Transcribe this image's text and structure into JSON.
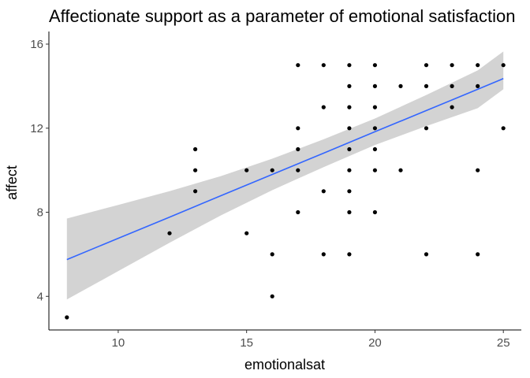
{
  "chart_data": {
    "type": "scatter",
    "title": "Affectionate support as a parameter of emotional satisfaction",
    "xlabel": "emotionalsat",
    "ylabel": "affect",
    "xlim": [
      7.3,
      25.7
    ],
    "ylim": [
      2.4,
      16.6
    ],
    "x_ticks": [
      10,
      15,
      20,
      25
    ],
    "y_ticks": [
      4,
      8,
      12,
      16
    ],
    "grid": false,
    "legend": "none",
    "points": [
      [
        8,
        3
      ],
      [
        12,
        7
      ],
      [
        13,
        9
      ],
      [
        13,
        10
      ],
      [
        13,
        11
      ],
      [
        15,
        7
      ],
      [
        15,
        10
      ],
      [
        16,
        4
      ],
      [
        16,
        6
      ],
      [
        16,
        10
      ],
      [
        17,
        8
      ],
      [
        17,
        10
      ],
      [
        17,
        11
      ],
      [
        17,
        12
      ],
      [
        17,
        15
      ],
      [
        18,
        6
      ],
      [
        18,
        9
      ],
      [
        18,
        13
      ],
      [
        18,
        15
      ],
      [
        19,
        6
      ],
      [
        19,
        8
      ],
      [
        19,
        9
      ],
      [
        19,
        10
      ],
      [
        19,
        11
      ],
      [
        19,
        12
      ],
      [
        19,
        13
      ],
      [
        19,
        14
      ],
      [
        19,
        15
      ],
      [
        20,
        8
      ],
      [
        20,
        10
      ],
      [
        20,
        11
      ],
      [
        20,
        12
      ],
      [
        20,
        13
      ],
      [
        20,
        14
      ],
      [
        20,
        15
      ],
      [
        21,
        10
      ],
      [
        21,
        14
      ],
      [
        22,
        6
      ],
      [
        22,
        12
      ],
      [
        22,
        14
      ],
      [
        22,
        15
      ],
      [
        23,
        13
      ],
      [
        23,
        14
      ],
      [
        23,
        15
      ],
      [
        24,
        6
      ],
      [
        24,
        10
      ],
      [
        24,
        14
      ],
      [
        24,
        15
      ],
      [
        25,
        12
      ],
      [
        25,
        15
      ]
    ],
    "smooth": {
      "method": "lm",
      "x": [
        8,
        10,
        12,
        14,
        16,
        18,
        20,
        22,
        24,
        25
      ],
      "fit": [
        5.75,
        6.76,
        7.77,
        8.79,
        9.8,
        10.81,
        11.83,
        12.84,
        13.85,
        14.36
      ],
      "lower": [
        3.85,
        5.2,
        6.55,
        7.85,
        9.05,
        10.15,
        11.2,
        12.1,
        12.95,
        13.85
      ],
      "upper": [
        7.7,
        8.35,
        9.0,
        9.72,
        10.55,
        11.47,
        12.46,
        13.58,
        14.75,
        15.65
      ]
    },
    "colors": {
      "points": "#000000",
      "line": "#3366FF",
      "band": "#D3D3D3",
      "axis": "#000000",
      "tick_text": "#4D4D4D"
    }
  }
}
